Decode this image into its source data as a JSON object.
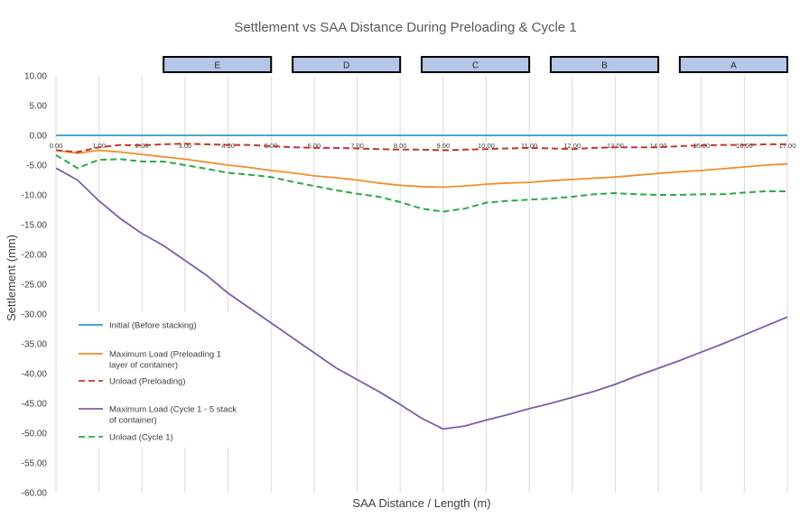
{
  "chart_data": {
    "type": "line",
    "title": "Settlement vs SAA Distance During Preloading & Cycle 1",
    "xlabel": "SAA Distance / Length (m)",
    "ylabel": "Settlement (mm)",
    "xlim": [
      0,
      17
    ],
    "ylim": [
      -60,
      10
    ],
    "x_ticks": [
      "0.00",
      "1.00",
      "2.00",
      "3.00",
      "4.00",
      "5.00",
      "6.00",
      "7.00",
      "8.00",
      "9.00",
      "10.00",
      "11.00",
      "12.00",
      "13.00",
      "14.00",
      "15.00",
      "16.00",
      "17.00"
    ],
    "y_ticks": [
      "10.00",
      "5.00",
      "0.00",
      "-5.00",
      "-10.00",
      "-15.00",
      "-20.00",
      "-25.00",
      "-30.00",
      "-35.00",
      "-40.00",
      "-45.00",
      "-50.00",
      "-55.00",
      "-60.00"
    ],
    "grid": "vertical",
    "legend_position": "left",
    "zones": [
      {
        "label": "E",
        "x_start": 2.5,
        "x_end": 5.0
      },
      {
        "label": "D",
        "x_start": 5.5,
        "x_end": 8.0
      },
      {
        "label": "C",
        "x_start": 8.5,
        "x_end": 11.0
      },
      {
        "label": "B",
        "x_start": 11.5,
        "x_end": 14.0
      },
      {
        "label": "A",
        "x_start": 14.5,
        "x_end": 17.0
      }
    ],
    "series": [
      {
        "name": "Initial (Before stacking)",
        "color": "#3399cc",
        "dash": "solid",
        "x": [
          0,
          17
        ],
        "y": [
          0,
          0
        ]
      },
      {
        "name": "Maximum Load (Preloading 1 layer of container)",
        "color": "#f28e2b",
        "dash": "solid",
        "x": [
          0,
          0.5,
          1,
          1.5,
          2,
          2.5,
          3,
          3.5,
          4,
          4.5,
          5,
          5.5,
          6,
          6.5,
          7,
          7.5,
          8,
          8.5,
          9,
          9.5,
          10,
          10.5,
          11,
          11.5,
          12,
          12.5,
          13,
          13.5,
          14,
          14.5,
          15,
          15.5,
          16,
          16.5,
          17
        ],
        "y": [
          -2.5,
          -3,
          -2.5,
          -2.8,
          -3.2,
          -3.6,
          -4,
          -4.5,
          -5,
          -5.4,
          -5.9,
          -6.3,
          -6.8,
          -7.1,
          -7.5,
          -8,
          -8.4,
          -8.6,
          -8.7,
          -8.5,
          -8.2,
          -8,
          -7.9,
          -7.6,
          -7.4,
          -7.2,
          -7,
          -6.7,
          -6.4,
          -6.1,
          -5.9,
          -5.6,
          -5.3,
          -5,
          -4.8
        ]
      },
      {
        "name": "Unload (Preloading)",
        "color": "#c0392b",
        "dash": "dashed",
        "x": [
          0,
          0.5,
          1,
          1.5,
          2,
          2.5,
          3,
          3.5,
          4,
          4.5,
          5,
          5.5,
          6,
          6.5,
          7,
          7.5,
          8,
          8.5,
          9,
          9.5,
          10,
          10.5,
          11,
          11.5,
          12,
          12.5,
          13,
          13.5,
          14,
          14.5,
          15,
          15.5,
          16,
          16.5,
          17
        ],
        "y": [
          -2.5,
          -2.8,
          -2,
          -1.6,
          -1.7,
          -1.5,
          -1.4,
          -1.5,
          -1.6,
          -1.6,
          -1.8,
          -2,
          -2.1,
          -2.1,
          -2.2,
          -2.3,
          -2.4,
          -2.4,
          -2.5,
          -2.4,
          -2.3,
          -2.2,
          -2.1,
          -2.2,
          -2.3,
          -2.1,
          -2,
          -2,
          -2,
          -1.8,
          -1.7,
          -1.6,
          -1.6,
          -1.5,
          -1.5
        ]
      },
      {
        "name": "Maximum Load (Cycle 1 - 5 stack of container)",
        "color": "#7b5ea7",
        "dash": "solid",
        "x": [
          0,
          0.5,
          1,
          1.5,
          2,
          2.5,
          3,
          3.5,
          4,
          4.5,
          5,
          5.5,
          6,
          6.5,
          7,
          7.5,
          8,
          8.5,
          9,
          9.5,
          10,
          10.5,
          11,
          11.5,
          12,
          12.5,
          13,
          13.5,
          14,
          14.5,
          15,
          15.5,
          16,
          16.5,
          17
        ],
        "y": [
          -5.5,
          -7.5,
          -11,
          -14,
          -16.5,
          -18.5,
          -21,
          -23.5,
          -26.5,
          -29,
          -31.5,
          -34,
          -36.5,
          -39,
          -41,
          -43,
          -45.2,
          -47.5,
          -49.3,
          -48.8,
          -47.8,
          -46.9,
          -45.9,
          -45,
          -44,
          -43,
          -41.8,
          -40.4,
          -39.1,
          -37.8,
          -36.4,
          -35,
          -33.5,
          -32,
          -30.5
        ]
      },
      {
        "name": "Unload (Cycle 1)",
        "color": "#2ca84a",
        "dash": "dashed",
        "x": [
          0,
          0.5,
          1,
          1.5,
          2,
          2.5,
          3,
          3.5,
          4,
          4.5,
          5,
          5.5,
          6,
          6.5,
          7,
          7.5,
          8,
          8.5,
          9,
          9.5,
          10,
          10.5,
          11,
          11.5,
          12,
          12.5,
          13,
          13.5,
          14,
          14.5,
          15,
          15.5,
          16,
          16.5,
          17
        ],
        "y": [
          -3.3,
          -5.5,
          -4.1,
          -4,
          -4.4,
          -4.4,
          -5,
          -5.6,
          -6.3,
          -6.6,
          -7,
          -7.8,
          -8.5,
          -9.2,
          -9.8,
          -10.3,
          -11.2,
          -12.3,
          -12.8,
          -12.3,
          -11.3,
          -11,
          -10.8,
          -10.6,
          -10.3,
          -9.9,
          -9.7,
          -9.9,
          -10,
          -10,
          -9.9,
          -9.9,
          -9.6,
          -9.4,
          -9.4
        ]
      }
    ]
  }
}
